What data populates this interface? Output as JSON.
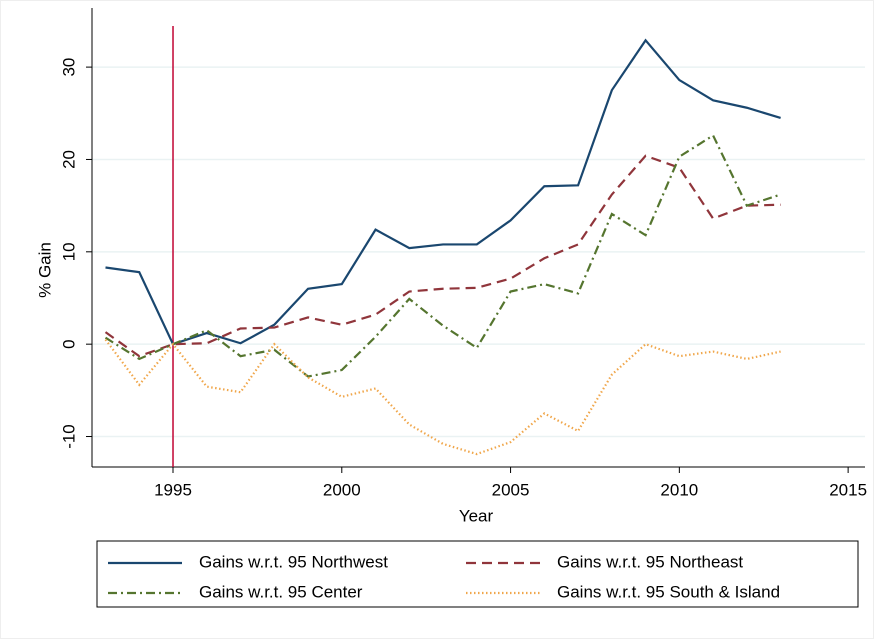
{
  "chart_data": {
    "type": "line",
    "x": [
      1993,
      1994,
      1995,
      1996,
      1997,
      1998,
      1999,
      2000,
      2001,
      2002,
      2003,
      2004,
      2005,
      2006,
      2007,
      2008,
      2009,
      2010,
      2011,
      2012,
      2013
    ],
    "series": [
      {
        "name": "Gains w.r.t. 95 Northwest",
        "color": "#1a476f",
        "dash": "none",
        "values": [
          8.3,
          7.8,
          0,
          1.2,
          0.1,
          2.1,
          6.0,
          6.5,
          12.4,
          10.4,
          10.8,
          10.8,
          13.4,
          17.1,
          17.2,
          27.5,
          32.9,
          28.6,
          26.4,
          25.6,
          24.5
        ]
      },
      {
        "name": "Gains w.r.t. 95 Northeast",
        "color": "#90353b",
        "dash": "10 6",
        "values": [
          1.3,
          -1.3,
          0,
          0.1,
          1.7,
          1.8,
          2.9,
          2.1,
          3.2,
          5.7,
          6.0,
          6.1,
          7.1,
          9.3,
          10.8,
          16.2,
          20.4,
          19.1,
          13.6,
          15.0,
          15.1
        ]
      },
      {
        "name": "Gains w.r.t. 95 Center",
        "color": "#55752f",
        "dash": "9 4 2 4",
        "values": [
          0.7,
          -1.6,
          0,
          1.5,
          -1.3,
          -0.6,
          -3.5,
          -2.8,
          0.8,
          4.9,
          2.0,
          -0.4,
          5.7,
          6.5,
          5.5,
          14.1,
          11.8,
          20.3,
          22.6,
          15.0,
          16.2
        ]
      },
      {
        "name": "Gains w.r.t. 95 South & Island",
        "color": "#f0a64a",
        "dash": "1.5 2.5",
        "values": [
          0.5,
          -4.4,
          0,
          -4.6,
          -5.2,
          0,
          -3.6,
          -5.7,
          -4.8,
          -8.7,
          -10.8,
          -11.9,
          -10.6,
          -7.5,
          -9.4,
          -3.3,
          0.0,
          -1.3,
          -0.8,
          -1.6,
          -0.8
        ]
      }
    ],
    "x_label": "Year",
    "y_label": "% Gain",
    "xlim": [
      1992.6,
      2015.5
    ],
    "xticks": [
      1995,
      2000,
      2005,
      2010,
      2015
    ],
    "ylim": [
      -13.3,
      36.4
    ],
    "yticks": [
      -10,
      0,
      10,
      20,
      30
    ],
    "grid": true,
    "reference_line": {
      "x": 1995,
      "color": "#c10534"
    }
  }
}
